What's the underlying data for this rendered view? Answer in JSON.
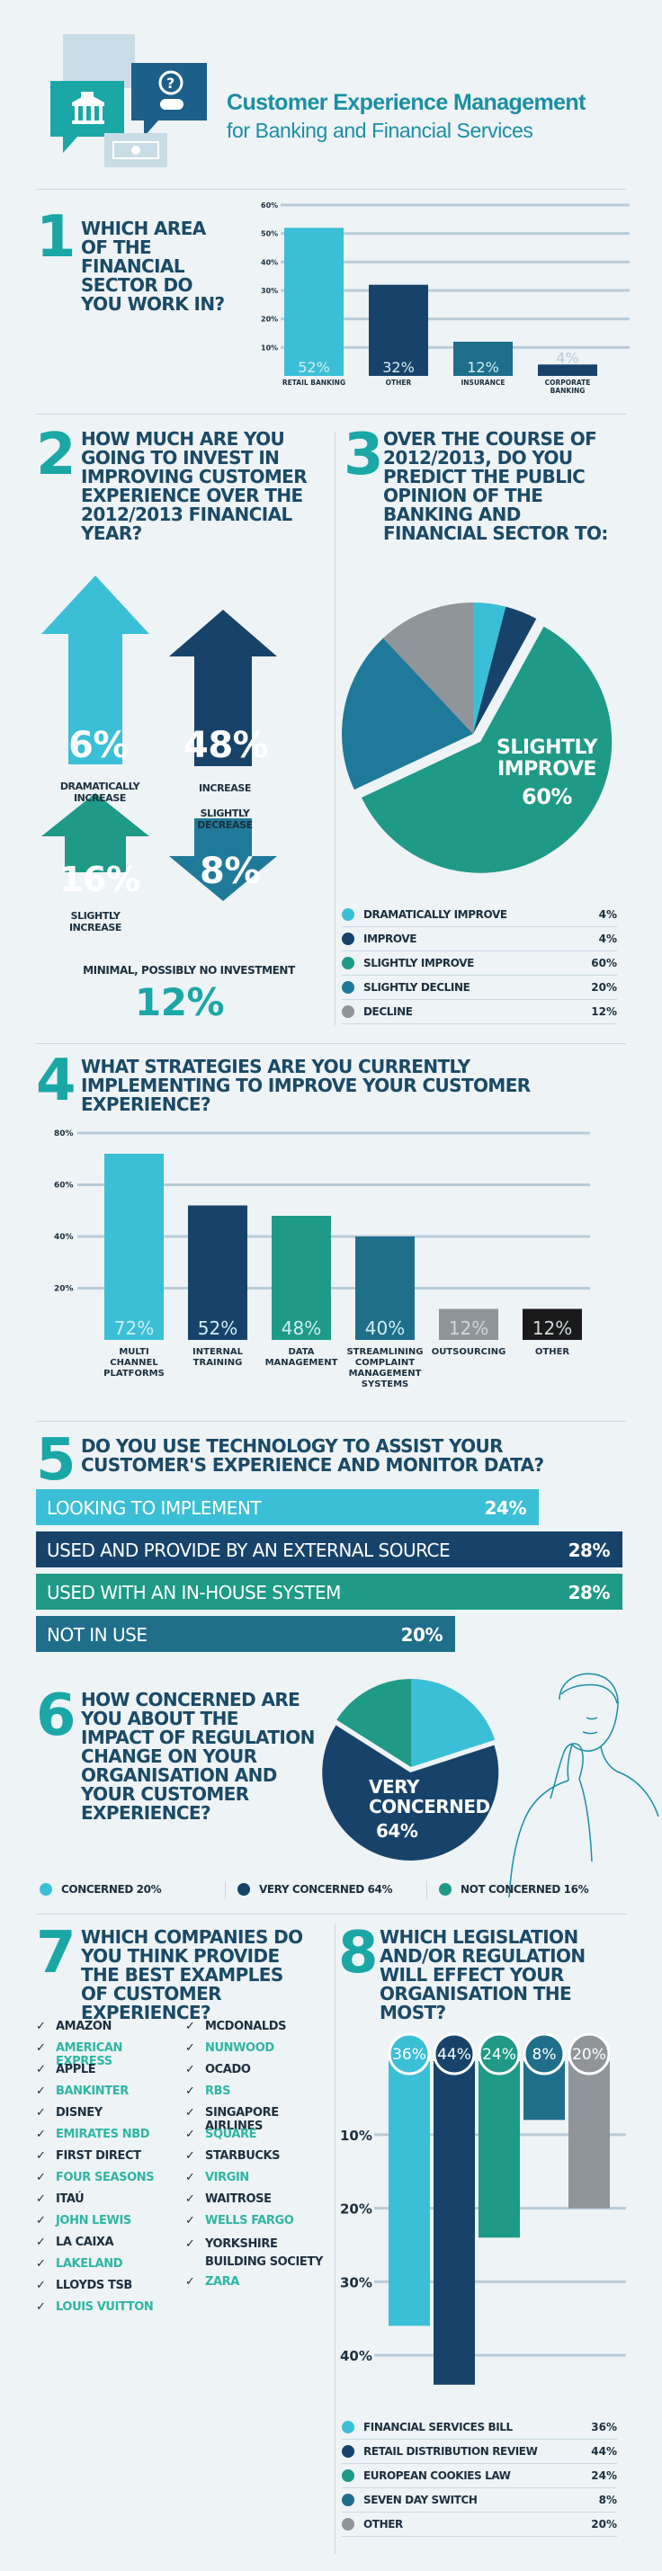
{
  "header": {
    "title": "Customer Experience Management",
    "subtitle": "for Banking and Financial Services"
  },
  "colors": {
    "navy": "#17436a",
    "teal": "#1aa7a6",
    "aqua": "#3bbfd6",
    "green": "#1e9a86",
    "gray": "#8f9599",
    "black": "#1a1a1a"
  },
  "chart_data": [
    {
      "id": "q1",
      "type": "bar",
      "number": "1",
      "title": "WHICH AREA OF THE FINANCIAL SECTOR DO YOU WORK IN?",
      "categories": [
        "RETAIL BANKING",
        "OTHER",
        "INSURANCE",
        "CORPORATE BANKING"
      ],
      "values": [
        52,
        32,
        12,
        4
      ],
      "value_labels": [
        "52%",
        "32%",
        "12%",
        "4%"
      ],
      "yticks": [
        "60%",
        "50%",
        "40%",
        "30%",
        "20%",
        "10%"
      ],
      "ylim": [
        0,
        60
      ]
    },
    {
      "id": "q2",
      "type": "arrows",
      "number": "2",
      "title": "HOW MUCH ARE YOU GOING TO INVEST IN IMPROVING CUSTOMER EXPERIENCE OVER THE 2012/2013 FINANCIAL YEAR?",
      "categories": [
        "DRAMATICALLY INCREASE",
        "INCREASE",
        "SLIGHTLY DECREASE",
        "SLIGHTLY INCREASE",
        "MINIMAL, POSSIBLY NO INVESTMENT"
      ],
      "values": [
        6,
        48,
        8,
        16,
        12
      ],
      "value_labels": [
        "6%",
        "48%",
        "8%",
        "16%",
        "12%"
      ]
    },
    {
      "id": "q3",
      "type": "pie",
      "number": "3",
      "title": "OVER THE COURSE OF 2012/2013, DO YOU PREDICT THE PUBLIC OPINION OF THE BANKING AND FINANCIAL SECTOR TO:",
      "categories": [
        "DRAMATICALLY IMPROVE",
        "IMPROVE",
        "SLIGHTLY IMPROVE",
        "SLIGHTLY DECLINE",
        "DECLINE"
      ],
      "values": [
        4,
        4,
        60,
        20,
        12
      ],
      "value_labels": [
        "4%",
        "4%",
        "60%",
        "20%",
        "12%"
      ],
      "colors": [
        "#3bbfd6",
        "#17436a",
        "#1e9a86",
        "#1f7a9a",
        "#8f9599"
      ],
      "callout_label": "SLIGHTLY IMPROVE",
      "callout_value": "60%"
    },
    {
      "id": "q4",
      "type": "bar",
      "number": "4",
      "title": "WHAT STRATEGIES ARE YOU CURRENTLY IMPLEMENTING TO IMPROVE YOUR CUSTOMER EXPERIENCE?",
      "categories": [
        "MULTI CHANNEL PLATFORMS",
        "INTERNAL TRAINING",
        "DATA MANAGEMENT",
        "STREAMLINING COMPLAINT MANAGEMENT SYSTEMS",
        "OUTSOURCING",
        "OTHER"
      ],
      "values": [
        72,
        52,
        48,
        40,
        12,
        12
      ],
      "value_labels": [
        "72%",
        "52%",
        "48%",
        "40%",
        "12%",
        "12%"
      ],
      "yticks": [
        "80%",
        "60%",
        "40%",
        "20%"
      ],
      "ylim": [
        0,
        80
      ]
    },
    {
      "id": "q5",
      "type": "bar",
      "orientation": "horizontal",
      "number": "5",
      "title": "DO YOU USE TECHNOLOGY TO ASSIST YOUR CUSTOMER'S EXPERIENCE AND MONITOR DATA?",
      "categories": [
        "LOOKING TO IMPLEMENT",
        "USED AND PROVIDE BY AN EXTERNAL SOURCE",
        "USED WITH AN IN-HOUSE SYSTEM",
        "NOT IN USE"
      ],
      "values": [
        24,
        28,
        28,
        20
      ],
      "value_labels": [
        "24%",
        "28%",
        "28%",
        "20%"
      ]
    },
    {
      "id": "q6",
      "type": "pie",
      "number": "6",
      "title": "HOW CONCERNED ARE YOU ABOUT THE IMPACT OF REGULATION CHANGE ON YOUR ORGANISATION AND YOUR CUSTOMER EXPERIENCE?",
      "categories": [
        "CONCERNED",
        "VERY CONCERNED",
        "NOT CONCERNED"
      ],
      "values": [
        20,
        64,
        16
      ],
      "value_labels": [
        "20%",
        "64%",
        "16%"
      ],
      "colors": [
        "#3bbfd6",
        "#17436a",
        "#1e9a86"
      ],
      "callout_label": "VERY CONCERNED",
      "callout_value": "64%"
    },
    {
      "id": "q8",
      "type": "bar",
      "orientation": "hanging",
      "number": "8",
      "title": "WHICH LEGISLATION AND/OR REGULATION WILL EFFECT YOUR ORGANISATION THE MOST?",
      "categories": [
        "FINANCIAL SERVICES BILL",
        "RETAIL DISTRIBUTION REVIEW",
        "EUROPEAN COOKIES LAW",
        "SEVEN DAY SWITCH",
        "OTHER"
      ],
      "values": [
        36,
        44,
        24,
        8,
        20
      ],
      "value_labels": [
        "36%",
        "44%",
        "24%",
        "8%",
        "20%"
      ],
      "colors": [
        "#3bbfd6",
        "#17436a",
        "#1e9a86",
        "#1f6e8a",
        "#8f9599"
      ],
      "yticks": [
        "10%",
        "20%",
        "30%",
        "40%"
      ],
      "ylim": [
        0,
        45
      ]
    }
  ],
  "q7": {
    "number": "7",
    "title": "WHICH COMPANIES DO YOU THINK PROVIDE THE BEST EXAMPLES OF CUSTOMER EXPERIENCE?",
    "tick": "✓",
    "col1": [
      "AMAZON",
      "AMERICAN EXPRESS",
      "APPLE",
      "BANKINTER",
      "DISNEY",
      "EMIRATES NBD",
      "FIRST DIRECT",
      "FOUR SEASONS",
      "ITAÚ",
      "JOHN LEWIS",
      "LA CAIXA",
      "LAKELAND",
      "LLOYDS TSB",
      "LOUIS VUITTON"
    ],
    "col2": [
      "MCDONALDS",
      "NUNWOOD",
      "OCADO",
      "RBS",
      "SINGAPORE AIRLINES",
      "SQUARE",
      "STARBUCKS",
      "VIRGIN",
      "WAITROSE",
      "WELLS FARGO",
      "YORKSHIRE BUILDING SOCIETY",
      "ZARA"
    ]
  },
  "icons": {
    "header": [
      "bank-icon",
      "question-person-icon",
      "document-icon",
      "cash-icon"
    ],
    "q6": "thinking-man-illustration"
  }
}
